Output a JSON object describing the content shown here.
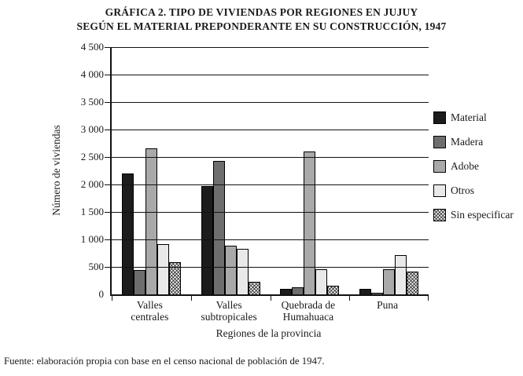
{
  "title": {
    "line1": "GRÁFICA 2. TIPO DE VIVIENDAS POR REGIONES EN JUJUY",
    "line2": "SEGÚN EL MATERIAL PREPONDERANTE EN SU CONSTRUCCIÓN, 1947"
  },
  "footer": "Fuente: elaboración propia con base en el censo nacional de población de 1947.",
  "chart_data": {
    "type": "bar",
    "title": "GRÁFICA 2. TIPO DE VIVIENDAS POR REGIONES EN JUJUY SEGÚN EL MATERIAL PREPONDERANTE EN SU CONSTRUCCIÓN, 1947",
    "xlabel": "Regiones de la provincia",
    "ylabel": "Número de viviendas",
    "ylim": [
      0,
      4500
    ],
    "ytick_step": 500,
    "ytick_labels": [
      "0",
      "500",
      "1 000",
      "1 500",
      "2 000",
      "2 500",
      "3 000",
      "3 500",
      "4 000",
      "4 500"
    ],
    "grid": true,
    "legend_position": "right",
    "categories": [
      "Valles centrales",
      "Valles subtropicales",
      "Quebrada de Humahuaca",
      "Puna"
    ],
    "category_label_lines": [
      [
        "Valles",
        "centrales"
      ],
      [
        "Valles",
        "subtropicales"
      ],
      [
        "Quebrada de",
        "Humahuaca"
      ],
      [
        "Puna"
      ]
    ],
    "series": [
      {
        "name": "Material",
        "color": "#1c1c1c",
        "pattern": "solid",
        "values": [
          2200,
          1970,
          100,
          100
        ]
      },
      {
        "name": "Madera",
        "color": "#6e6e6e",
        "pattern": "solid",
        "values": [
          450,
          2430,
          130,
          25
        ]
      },
      {
        "name": "Adobe",
        "color": "#a9a9a9",
        "pattern": "solid",
        "values": [
          2660,
          880,
          2600,
          460
        ]
      },
      {
        "name": "Otros",
        "color": "#e9e9e9",
        "pattern": "solid",
        "values": [
          910,
          830,
          460,
          720
        ]
      },
      {
        "name": "Sin especificar",
        "color": "#ffffff",
        "pattern": "diagonal-hatch",
        "values": [
          580,
          230,
          160,
          420
        ]
      }
    ]
  }
}
